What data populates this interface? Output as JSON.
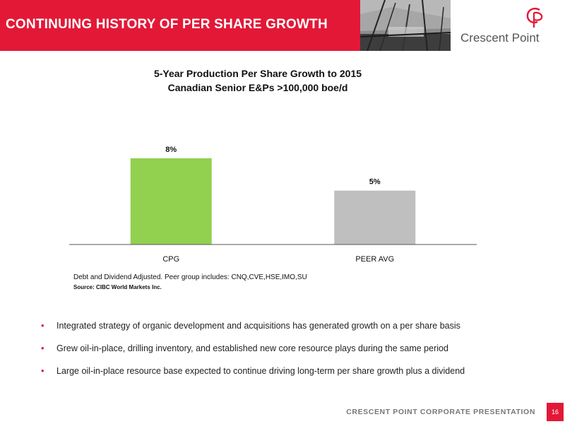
{
  "header": {
    "title": "CONTINUING HISTORY OF PER SHARE GROWTH",
    "brand_color": "#e31837"
  },
  "logo": {
    "text": "Crescent Point",
    "icon": "cp-logo-icon"
  },
  "chart_data": {
    "type": "bar",
    "title": "5-Year Production Per Share Growth to 2015",
    "subtitle": "Canadian Senior E&Ps >100,000 boe/d",
    "categories": [
      "CPG",
      "PEER AVG"
    ],
    "values": [
      8,
      5
    ],
    "data_labels": [
      "8%",
      "5%"
    ],
    "colors": [
      "#92d050",
      "#bfbfbf"
    ],
    "ylim": [
      0,
      10
    ],
    "grid": false,
    "legend": "none"
  },
  "notes": {
    "adjustment": "Debt and Dividend Adjusted. Peer group includes: CNQ,CVE,HSE,IMO,SU",
    "source": "Source: CIBC World Markets Inc."
  },
  "bullets": [
    "Integrated strategy of organic development and acquisitions has generated growth on a per share basis",
    "Grew oil-in-place, drilling inventory, and established new core resource plays during the same period",
    "Large oil-in-place resource base expected to continue driving long-term per share growth plus a dividend"
  ],
  "footer": {
    "text": "CRESCENT POINT CORPORATE PRESENTATION",
    "page_number": "16"
  }
}
